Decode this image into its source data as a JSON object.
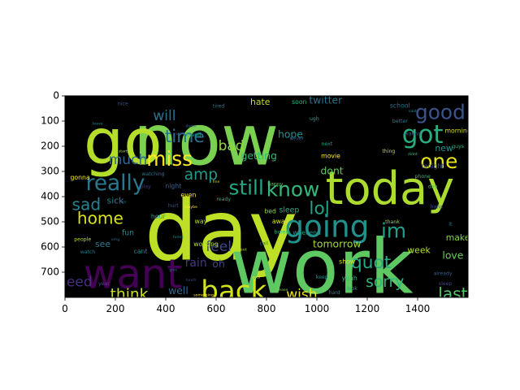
{
  "chart_data": {
    "type": "wordcloud",
    "background_color": "#000000",
    "colormap": "viridis",
    "xlim": [
      0,
      1600
    ],
    "ylim": [
      800,
      0
    ],
    "y_inverted": true,
    "x_ticks": [
      "0",
      "200",
      "400",
      "600",
      "800",
      "1000",
      "1200",
      "1400"
    ],
    "y_ticks": [
      "0",
      "100",
      "200",
      "300",
      "400",
      "500",
      "600",
      "700"
    ],
    "words": [
      {
        "text": "now",
        "color": "#7ad151",
        "x": 560,
        "y": 195,
        "size": 280
      },
      {
        "text": "day",
        "color": "#bddf26",
        "x": 620,
        "y": 560,
        "size": 330
      },
      {
        "text": "work",
        "color": "#5ec962",
        "x": 1020,
        "y": 700,
        "size": 300
      },
      {
        "text": "go",
        "color": "#b5de2b",
        "x": 230,
        "y": 200,
        "size": 250
      },
      {
        "text": "today",
        "color": "#addc30",
        "x": 1290,
        "y": 380,
        "size": 180
      },
      {
        "text": "want",
        "color": "#440154",
        "x": 270,
        "y": 720,
        "size": 160
      },
      {
        "text": "going",
        "color": "#21918c",
        "x": 1040,
        "y": 525,
        "size": 120
      },
      {
        "text": "back",
        "color": "#d2e21b",
        "x": 670,
        "y": 780,
        "size": 110
      },
      {
        "text": "got",
        "color": "#28ae80",
        "x": 1420,
        "y": 160,
        "size": 100
      },
      {
        "text": "good",
        "color": "#3b528b",
        "x": 1490,
        "y": 70,
        "size": 80
      },
      {
        "text": "miss",
        "color": "#fde725",
        "x": 415,
        "y": 255,
        "size": 80
      },
      {
        "text": "time",
        "color": "#2c728e",
        "x": 475,
        "y": 165,
        "size": 70
      },
      {
        "text": "really",
        "color": "#2a788e",
        "x": 200,
        "y": 350,
        "size": 85
      },
      {
        "text": "still",
        "color": "#22a884",
        "x": 720,
        "y": 370,
        "size": 80
      },
      {
        "text": "know",
        "color": "#35b779",
        "x": 905,
        "y": 375,
        "size": 80
      },
      {
        "text": "one",
        "color": "#e5e419",
        "x": 1485,
        "y": 265,
        "size": 80
      },
      {
        "text": "lol",
        "color": "#20a486",
        "x": 1010,
        "y": 450,
        "size": 70
      },
      {
        "text": "im",
        "color": "#1f9e89",
        "x": 1305,
        "y": 540,
        "size": 80
      },
      {
        "text": "quot",
        "color": "#25ab82",
        "x": 1215,
        "y": 665,
        "size": 70
      },
      {
        "text": "home",
        "color": "#d8e219",
        "x": 140,
        "y": 490,
        "size": 65
      },
      {
        "text": "sad",
        "color": "#26828e",
        "x": 85,
        "y": 435,
        "size": 65
      },
      {
        "text": "amp",
        "color": "#1e9c89",
        "x": 540,
        "y": 315,
        "size": 60
      },
      {
        "text": "think",
        "color": "#c8e020",
        "x": 255,
        "y": 790,
        "size": 60
      },
      {
        "text": "wish",
        "color": "#f1e51d",
        "x": 940,
        "y": 790,
        "size": 55
      },
      {
        "text": "last",
        "color": "#52c569",
        "x": 1540,
        "y": 790,
        "size": 65
      },
      {
        "text": "will",
        "color": "#2d708e",
        "x": 395,
        "y": 80,
        "size": 55
      },
      {
        "text": "much",
        "color": "#31688e",
        "x": 250,
        "y": 255,
        "size": 55
      },
      {
        "text": "sorry",
        "color": "#2fb47c",
        "x": 1270,
        "y": 740,
        "size": 60
      },
      {
        "text": "bad",
        "color": "#90d743",
        "x": 660,
        "y": 200,
        "size": 55
      },
      {
        "text": "feel",
        "color": "#3e4989",
        "x": 610,
        "y": 600,
        "size": 55
      },
      {
        "text": "need",
        "color": "#472d7b",
        "x": 40,
        "y": 740,
        "size": 55
      },
      {
        "text": "hope",
        "color": "#1f958b",
        "x": 895,
        "y": 155,
        "size": 40
      },
      {
        "text": "dont",
        "color": "#5ec962",
        "x": 1060,
        "y": 300,
        "size": 40
      },
      {
        "text": "tomorrow",
        "color": "#a0da39",
        "x": 1080,
        "y": 590,
        "size": 40
      },
      {
        "text": "love",
        "color": "#6ccd5a",
        "x": 1540,
        "y": 635,
        "size": 40
      },
      {
        "text": "make",
        "color": "#84d44b",
        "x": 1560,
        "y": 565,
        "size": 35
      },
      {
        "text": "twitter",
        "color": "#2d708e",
        "x": 1035,
        "y": 20,
        "size": 40
      },
      {
        "text": "hate",
        "color": "#c0df25",
        "x": 775,
        "y": 25,
        "size": 35
      },
      {
        "text": "sick",
        "color": "#277f8e",
        "x": 200,
        "y": 418,
        "size": 35
      },
      {
        "text": "fun",
        "color": "#25848e",
        "x": 250,
        "y": 545,
        "size": 30
      },
      {
        "text": "see",
        "color": "#2a788e",
        "x": 150,
        "y": 590,
        "size": 35
      },
      {
        "text": "well",
        "color": "#31688e",
        "x": 450,
        "y": 775,
        "size": 40
      },
      {
        "text": "rain",
        "color": "#443983",
        "x": 520,
        "y": 665,
        "size": 45
      },
      {
        "text": "oh",
        "color": "#404688",
        "x": 610,
        "y": 670,
        "size": 40
      },
      {
        "text": "getting",
        "color": "#35b779",
        "x": 770,
        "y": 240,
        "size": 40
      },
      {
        "text": "new",
        "color": "#20928c",
        "x": 1505,
        "y": 210,
        "size": 35
      },
      {
        "text": "week",
        "color": "#b5de2b",
        "x": 1405,
        "y": 615,
        "size": 35
      },
      {
        "text": "weekend",
        "color": "#1f9a8a",
        "x": 960,
        "y": 545,
        "size": 25
      },
      {
        "text": "show",
        "color": "#e5e419",
        "x": 1120,
        "y": 660,
        "size": 25
      },
      {
        "text": "yeah",
        "color": "#3aba76",
        "x": 1130,
        "y": 725,
        "size": 25
      },
      {
        "text": "bed",
        "color": "#86d549",
        "x": 815,
        "y": 460,
        "size": 25
      },
      {
        "text": "away",
        "color": "#d8e219",
        "x": 855,
        "y": 500,
        "size": 25
      },
      {
        "text": "sleep",
        "color": "#26ad81",
        "x": 890,
        "y": 455,
        "size": 30
      },
      {
        "text": "movie",
        "color": "#fde725",
        "x": 1055,
        "y": 240,
        "size": 25
      },
      {
        "text": "tonight",
        "color": "#3b528b",
        "x": 1460,
        "y": 280,
        "size": 25
      },
      {
        "text": "school",
        "color": "#2c728e",
        "x": 1330,
        "y": 40,
        "size": 25
      },
      {
        "text": "morning",
        "color": "#d8e219",
        "x": 1560,
        "y": 140,
        "size": 25
      },
      {
        "text": "working",
        "color": "#b5de2b",
        "x": 560,
        "y": 590,
        "size": 25
      },
      {
        "text": "cant",
        "color": "#24868e",
        "x": 300,
        "y": 620,
        "size": 25
      },
      {
        "text": "gonna",
        "color": "#fde725",
        "x": 60,
        "y": 325,
        "size": 25
      },
      {
        "text": "soon",
        "color": "#29af7f",
        "x": 930,
        "y": 25,
        "size": 25
      },
      {
        "text": "hour",
        "color": "#1f9a8a",
        "x": 370,
        "y": 480,
        "size": 25
      },
      {
        "text": "way",
        "color": "#b8de29",
        "x": 540,
        "y": 500,
        "size": 25
      },
      {
        "text": "even",
        "color": "#fde725",
        "x": 490,
        "y": 395,
        "size": 25
      },
      {
        "text": "night",
        "color": "#355f8d",
        "x": 430,
        "y": 360,
        "size": 25
      },
      {
        "text": "never",
        "color": "#3b528b",
        "x": 920,
        "y": 170,
        "size": 20
      },
      {
        "text": "happy",
        "color": "#5ec962",
        "x": 835,
        "y": 350,
        "size": 20
      },
      {
        "text": "better",
        "color": "#26828e",
        "x": 1330,
        "y": 100,
        "size": 20
      },
      {
        "text": "thing",
        "color": "#bddf26",
        "x": 1285,
        "y": 220,
        "size": 20
      },
      {
        "text": "hurt",
        "color": "#39568c",
        "x": 430,
        "y": 435,
        "size": 20
      },
      {
        "text": "friend",
        "color": "#22a884",
        "x": 510,
        "y": 155,
        "size": 20
      },
      {
        "text": "tired",
        "color": "#2c728e",
        "x": 610,
        "y": 40,
        "size": 20
      },
      {
        "text": "next",
        "color": "#1f958b",
        "x": 1040,
        "y": 190,
        "size": 20
      },
      {
        "text": "ready",
        "color": "#2fb47c",
        "x": 630,
        "y": 410,
        "size": 20
      },
      {
        "text": "bored",
        "color": "#35b779",
        "x": 860,
        "y": 540,
        "size": 20
      },
      {
        "text": "call",
        "color": "#31688e",
        "x": 790,
        "y": 585,
        "size": 20
      },
      {
        "text": "year",
        "color": "#3b528b",
        "x": 155,
        "y": 745,
        "size": 20
      },
      {
        "text": "people",
        "color": "#b5de2b",
        "x": 70,
        "y": 570,
        "size": 20
      },
      {
        "text": "watch",
        "color": "#2a788e",
        "x": 90,
        "y": 620,
        "size": 20
      },
      {
        "text": "hard",
        "color": "#26828e",
        "x": 1070,
        "y": 780,
        "size": 20
      },
      {
        "text": "keep",
        "color": "#21918c",
        "x": 1020,
        "y": 720,
        "size": 20
      },
      {
        "text": "look",
        "color": "#20a486",
        "x": 1140,
        "y": 765,
        "size": 20
      },
      {
        "text": "nice",
        "color": "#3b528b",
        "x": 230,
        "y": 30,
        "size": 20
      },
      {
        "text": "watching",
        "color": "#2a788e",
        "x": 350,
        "y": 310,
        "size": 20
      },
      {
        "text": "play",
        "color": "#443983",
        "x": 320,
        "y": 360,
        "size": 20
      },
      {
        "text": "day",
        "color": "#4ac16d",
        "x": 1460,
        "y": 360,
        "size": 20
      },
      {
        "text": "haha",
        "color": "#3b528b",
        "x": 1475,
        "y": 440,
        "size": 20
      },
      {
        "text": "already",
        "color": "#355f8d",
        "x": 1500,
        "y": 705,
        "size": 20
      },
      {
        "text": "thank",
        "color": "#9fda3a",
        "x": 1300,
        "y": 500,
        "size": 20
      },
      {
        "text": "lt",
        "color": "#2a788e",
        "x": 1530,
        "y": 510,
        "size": 20
      },
      {
        "text": "guys",
        "color": "#2fb47c",
        "x": 1560,
        "y": 200,
        "size": 20
      },
      {
        "text": "phone",
        "color": "#35b779",
        "x": 1420,
        "y": 320,
        "size": 20
      },
      {
        "text": "sleep",
        "color": "#3e4989",
        "x": 1510,
        "y": 745,
        "size": 20
      },
      {
        "text": "ugh",
        "color": "#20a486",
        "x": 990,
        "y": 90,
        "size": 20
      },
      {
        "text": "said",
        "color": "#1f958b",
        "x": 1380,
        "y": 60,
        "size": 15
      },
      {
        "text": "didnt",
        "color": "#3aba76",
        "x": 1380,
        "y": 230,
        "size": 15
      },
      {
        "text": "wanna",
        "color": "#31688e",
        "x": 1380,
        "y": 150,
        "size": 20
      },
      {
        "text": "damn",
        "color": "#31688e",
        "x": 500,
        "y": 120,
        "size": 15
      },
      {
        "text": "suck",
        "color": "#3e4989",
        "x": 450,
        "y": 150,
        "size": 15
      },
      {
        "text": "poor",
        "color": "#fde725",
        "x": 760,
        "y": 720,
        "size": 15
      },
      {
        "text": "tweet",
        "color": "#addc30",
        "x": 700,
        "y": 610,
        "size": 15
      },
      {
        "text": "something",
        "color": "#fde725",
        "x": 550,
        "y": 790,
        "size": 15
      },
      {
        "text": "please",
        "color": "#7ad151",
        "x": 860,
        "y": 770,
        "size": 15
      },
      {
        "text": "hey",
        "color": "#2c728e",
        "x": 230,
        "y": 420,
        "size": 15
      },
      {
        "text": "start",
        "color": "#a0da39",
        "x": 230,
        "y": 220,
        "size": 15
      },
      {
        "text": "fine",
        "color": "#b5de2b",
        "x": 600,
        "y": 340,
        "size": 15
      },
      {
        "text": "maybe",
        "color": "#fde725",
        "x": 500,
        "y": 440,
        "size": 15
      },
      {
        "text": "leave",
        "color": "#21918c",
        "x": 130,
        "y": 110,
        "size": 15
      },
      {
        "text": "omg",
        "color": "#31688e",
        "x": 200,
        "y": 570,
        "size": 15
      },
      {
        "text": "lunch",
        "color": "#3b528b",
        "x": 500,
        "y": 730,
        "size": 15
      },
      {
        "text": "give",
        "color": "#2c728e",
        "x": 430,
        "y": 690,
        "size": 15
      },
      {
        "text": "funny",
        "color": "#1f958b",
        "x": 450,
        "y": 560,
        "size": 15
      }
    ]
  }
}
